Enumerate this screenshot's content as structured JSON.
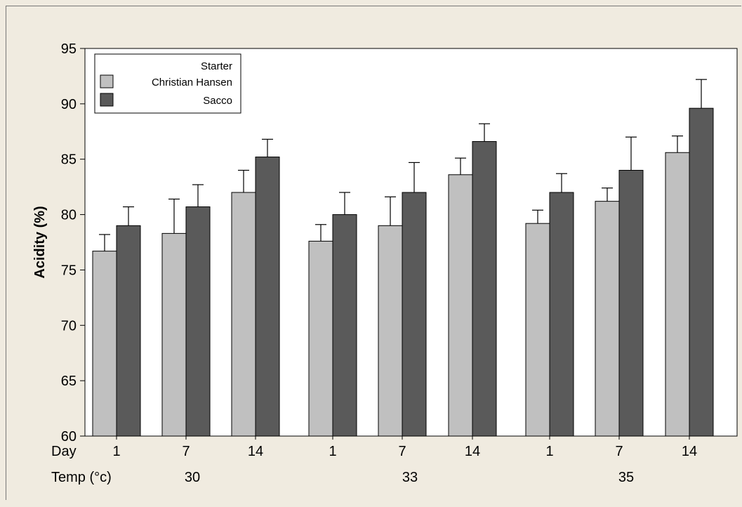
{
  "chart_data": {
    "type": "bar",
    "ylabel": "Acidity (%)",
    "ylim": [
      60,
      95
    ],
    "yticks": [
      60,
      65,
      70,
      75,
      80,
      85,
      90,
      95
    ],
    "row_labels": {
      "day": "Day",
      "temp": "Temp (°c)"
    },
    "temp_groups": [
      "30",
      "33",
      "35"
    ],
    "categories": [
      "1",
      "7",
      "14",
      "1",
      "7",
      "14",
      "1",
      "7",
      "14"
    ],
    "legend": {
      "title": "Starter",
      "placement": "top-left"
    },
    "series": [
      {
        "name": "Christian Hansen",
        "color": "#c0c0c0",
        "values": [
          76.7,
          78.3,
          82.0,
          77.6,
          79.0,
          83.6,
          79.2,
          81.2,
          85.6
        ],
        "errors": [
          1.5,
          3.1,
          2.0,
          1.5,
          2.6,
          1.5,
          1.2,
          1.2,
          1.5
        ]
      },
      {
        "name": "Sacco",
        "color": "#5a5a5a",
        "values": [
          79.0,
          80.7,
          85.2,
          80.0,
          82.0,
          86.6,
          82.0,
          84.0,
          89.6
        ],
        "errors": [
          1.7,
          2.0,
          1.6,
          2.0,
          2.7,
          1.6,
          1.7,
          3.0,
          2.6
        ]
      }
    ],
    "grid": false
  }
}
